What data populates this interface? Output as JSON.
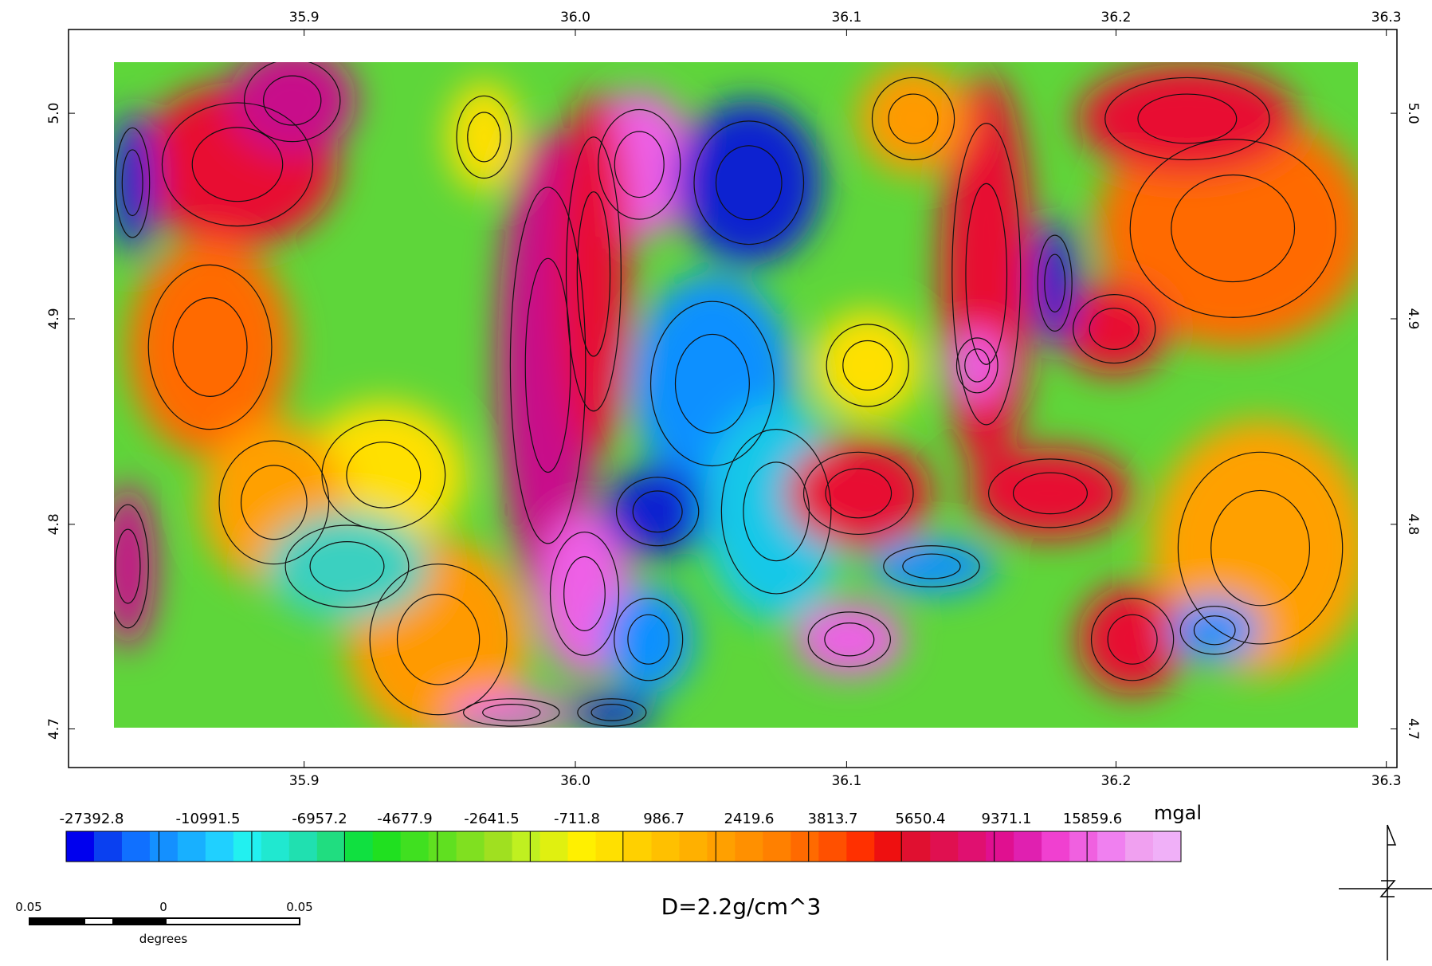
{
  "map": {
    "x_ticks": [
      "35.9",
      "36.0",
      "36.1",
      "36.2",
      "36.3"
    ],
    "y_ticks": [
      "5.0",
      "4.9",
      "4.8",
      "4.7"
    ],
    "legend": {
      "labels": [
        "-27392.8",
        "-10991.5",
        "-6957.2",
        "-4677.9",
        "-2641.5",
        "-711.8",
        "986.7",
        "2419.6",
        "3813.7",
        "5650.4",
        "9371.1",
        "15859.6"
      ],
      "unit": "mgal"
    },
    "density": "D=2.2g/cm^3",
    "scale_bar": {
      "left": "0.05",
      "middle": "0",
      "right": "0.05",
      "unit": "degrees"
    }
  }
}
